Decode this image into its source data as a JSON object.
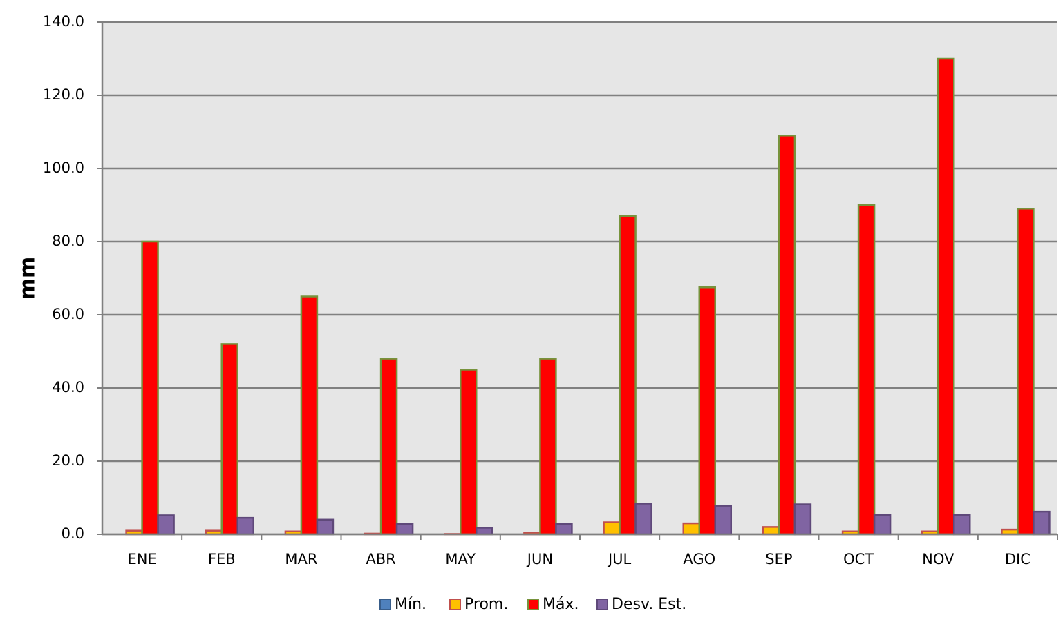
{
  "chart_data": {
    "type": "bar",
    "title": "",
    "xlabel": "",
    "ylabel": "mm",
    "ylim": [
      0,
      140
    ],
    "yticks": [
      "0.0",
      "20.0",
      "40.0",
      "60.0",
      "80.0",
      "100.0",
      "120.0",
      "140.0"
    ],
    "grid": true,
    "legend_position": "bottom",
    "categories": [
      "ENE",
      "FEB",
      "MAR",
      "ABR",
      "MAY",
      "JUN",
      "JUL",
      "AGO",
      "SEP",
      "OCT",
      "NOV",
      "DIC"
    ],
    "series": [
      {
        "name": "Mín.",
        "color": "#4f81bd",
        "stroke": "#385d8a",
        "values": [
          0,
          0,
          0,
          0,
          0,
          0,
          0,
          0,
          0,
          0,
          0,
          0
        ]
      },
      {
        "name": "Prom.",
        "color": "#ffc000",
        "stroke": "#c0504d",
        "values": [
          1.0,
          1.0,
          0.8,
          0.2,
          0.1,
          0.5,
          3.3,
          3.0,
          2.0,
          0.8,
          0.8,
          1.3
        ]
      },
      {
        "name": "Máx.",
        "color": "#ff0000",
        "stroke": "#77933c",
        "values": [
          80.0,
          52.0,
          65.0,
          48.0,
          45.0,
          48.0,
          87.0,
          67.5,
          109.0,
          90.0,
          130.0,
          89.0
        ]
      },
      {
        "name": "Desv. Est.",
        "color": "#8064a2",
        "stroke": "#5f497a",
        "values": [
          5.2,
          4.5,
          4.0,
          2.8,
          1.8,
          2.8,
          8.4,
          7.8,
          8.2,
          5.3,
          5.3,
          6.2
        ]
      }
    ],
    "colors": {
      "plot_background": "#e6e6e6",
      "gridline": "#808080",
      "axis": "#808080"
    }
  }
}
